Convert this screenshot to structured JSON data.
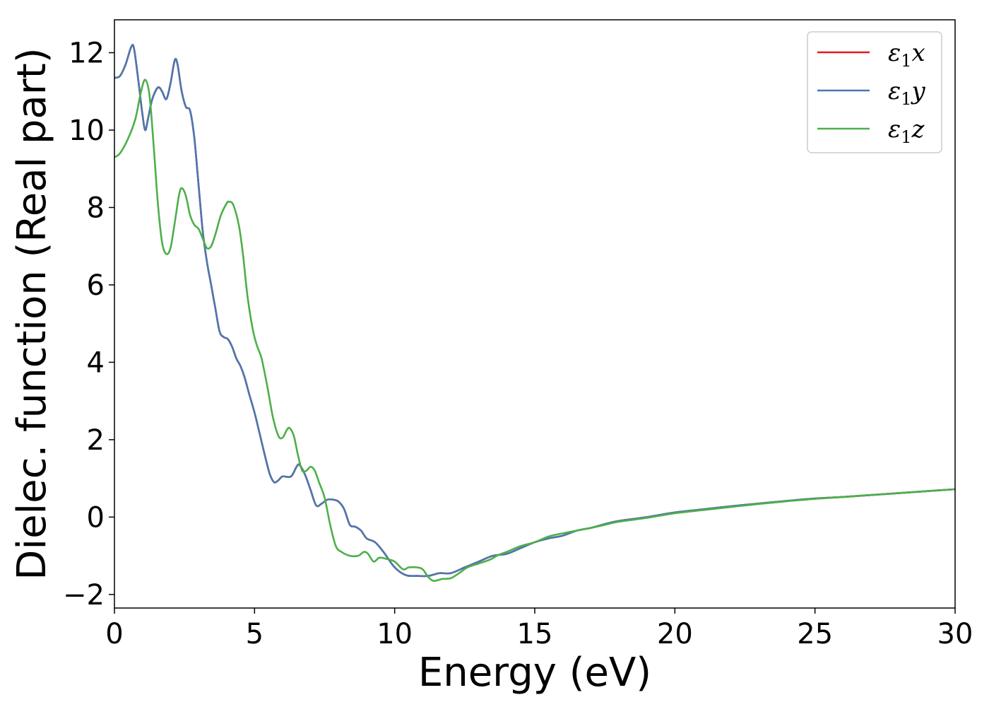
{
  "chart_data": {
    "type": "line",
    "title": "",
    "xlabel": "Energy (eV)",
    "ylabel": "Dielec. function (Real part)",
    "xlim": [
      0,
      30
    ],
    "ylim": [
      -2.35,
      12.85
    ],
    "xticks": [
      0,
      5,
      10,
      15,
      20,
      25,
      30
    ],
    "yticks": [
      -2,
      0,
      2,
      4,
      6,
      8,
      10,
      12
    ],
    "xtick_labels": [
      "0",
      "5",
      "10",
      "15",
      "20",
      "25",
      "30"
    ],
    "ytick_labels": [
      "−2",
      "0",
      "2",
      "4",
      "6",
      "8",
      "10",
      "12"
    ],
    "grid": false,
    "legend": "top-right",
    "series": [
      {
        "name_main": "ε",
        "name_sub": "1",
        "name_suffix": "x",
        "color": "#e41a1c",
        "points": [
          [
            0,
            11.35
          ],
          [
            0.2,
            11.4
          ],
          [
            0.4,
            11.7
          ],
          [
            0.6,
            12.15
          ],
          [
            0.7,
            12.1
          ],
          [
            0.85,
            11.3
          ],
          [
            1.0,
            10.4
          ],
          [
            1.1,
            10.0
          ],
          [
            1.2,
            10.3
          ],
          [
            1.35,
            10.8
          ],
          [
            1.55,
            11.1
          ],
          [
            1.7,
            11.0
          ],
          [
            1.85,
            10.8
          ],
          [
            2.0,
            11.2
          ],
          [
            2.15,
            11.8
          ],
          [
            2.25,
            11.7
          ],
          [
            2.4,
            11.0
          ],
          [
            2.55,
            10.6
          ],
          [
            2.7,
            10.5
          ],
          [
            2.85,
            9.8
          ],
          [
            3.0,
            8.6
          ],
          [
            3.15,
            7.4
          ],
          [
            3.3,
            6.6
          ],
          [
            3.45,
            6.0
          ],
          [
            3.6,
            5.4
          ],
          [
            3.75,
            4.8
          ],
          [
            3.9,
            4.65
          ],
          [
            4.05,
            4.6
          ],
          [
            4.2,
            4.4
          ],
          [
            4.35,
            4.1
          ],
          [
            4.5,
            3.9
          ],
          [
            4.65,
            3.6
          ],
          [
            4.8,
            3.2
          ],
          [
            5.0,
            2.7
          ],
          [
            5.2,
            2.1
          ],
          [
            5.4,
            1.5
          ],
          [
            5.55,
            1.1
          ],
          [
            5.7,
            0.9
          ],
          [
            5.85,
            0.95
          ],
          [
            6.0,
            1.05
          ],
          [
            6.3,
            1.05
          ],
          [
            6.5,
            1.3
          ],
          [
            6.6,
            1.35
          ],
          [
            6.8,
            1.1
          ],
          [
            7.0,
            0.7
          ],
          [
            7.2,
            0.3
          ],
          [
            7.4,
            0.35
          ],
          [
            7.6,
            0.45
          ],
          [
            7.8,
            0.45
          ],
          [
            8.0,
            0.4
          ],
          [
            8.2,
            0.2
          ],
          [
            8.4,
            -0.2
          ],
          [
            8.6,
            -0.25
          ],
          [
            8.8,
            -0.35
          ],
          [
            9.0,
            -0.55
          ],
          [
            9.3,
            -0.65
          ],
          [
            9.6,
            -0.9
          ],
          [
            10.0,
            -1.3
          ],
          [
            10.4,
            -1.5
          ],
          [
            10.8,
            -1.52
          ],
          [
            11.2,
            -1.52
          ],
          [
            11.6,
            -1.45
          ],
          [
            12.0,
            -1.45
          ],
          [
            12.5,
            -1.3
          ],
          [
            13.0,
            -1.15
          ],
          [
            13.5,
            -1.0
          ],
          [
            14.0,
            -0.95
          ],
          [
            14.5,
            -0.8
          ],
          [
            15.0,
            -0.65
          ],
          [
            15.5,
            -0.55
          ],
          [
            16.0,
            -0.48
          ],
          [
            16.5,
            -0.35
          ],
          [
            17.0,
            -0.28
          ],
          [
            17.5,
            -0.18
          ],
          [
            18.0,
            -0.1
          ],
          [
            19.0,
            0.0
          ],
          [
            20.0,
            0.12
          ],
          [
            21.0,
            0.2
          ],
          [
            22.0,
            0.28
          ],
          [
            23.0,
            0.35
          ],
          [
            24.0,
            0.42
          ],
          [
            25.0,
            0.48
          ],
          [
            26.0,
            0.52
          ],
          [
            27.0,
            0.57
          ],
          [
            28.0,
            0.62
          ],
          [
            29.0,
            0.67
          ],
          [
            30.0,
            0.72
          ]
        ]
      },
      {
        "name_main": "ε",
        "name_sub": "1",
        "name_suffix": "y",
        "color": "#4a78b0",
        "points": [
          [
            0,
            11.35
          ],
          [
            0.2,
            11.4
          ],
          [
            0.4,
            11.7
          ],
          [
            0.6,
            12.15
          ],
          [
            0.7,
            12.1
          ],
          [
            0.85,
            11.3
          ],
          [
            1.0,
            10.4
          ],
          [
            1.1,
            10.0
          ],
          [
            1.2,
            10.3
          ],
          [
            1.35,
            10.8
          ],
          [
            1.55,
            11.1
          ],
          [
            1.7,
            11.0
          ],
          [
            1.85,
            10.8
          ],
          [
            2.0,
            11.2
          ],
          [
            2.15,
            11.8
          ],
          [
            2.25,
            11.7
          ],
          [
            2.4,
            11.0
          ],
          [
            2.55,
            10.6
          ],
          [
            2.7,
            10.5
          ],
          [
            2.85,
            9.8
          ],
          [
            3.0,
            8.6
          ],
          [
            3.15,
            7.4
          ],
          [
            3.3,
            6.6
          ],
          [
            3.45,
            6.0
          ],
          [
            3.6,
            5.4
          ],
          [
            3.75,
            4.8
          ],
          [
            3.9,
            4.65
          ],
          [
            4.05,
            4.6
          ],
          [
            4.2,
            4.4
          ],
          [
            4.35,
            4.1
          ],
          [
            4.5,
            3.9
          ],
          [
            4.65,
            3.6
          ],
          [
            4.8,
            3.2
          ],
          [
            5.0,
            2.7
          ],
          [
            5.2,
            2.1
          ],
          [
            5.4,
            1.5
          ],
          [
            5.55,
            1.1
          ],
          [
            5.7,
            0.9
          ],
          [
            5.85,
            0.95
          ],
          [
            6.0,
            1.05
          ],
          [
            6.3,
            1.05
          ],
          [
            6.5,
            1.3
          ],
          [
            6.6,
            1.35
          ],
          [
            6.8,
            1.1
          ],
          [
            7.0,
            0.7
          ],
          [
            7.2,
            0.3
          ],
          [
            7.4,
            0.35
          ],
          [
            7.6,
            0.45
          ],
          [
            7.8,
            0.45
          ],
          [
            8.0,
            0.4
          ],
          [
            8.2,
            0.2
          ],
          [
            8.4,
            -0.2
          ],
          [
            8.6,
            -0.25
          ],
          [
            8.8,
            -0.35
          ],
          [
            9.0,
            -0.55
          ],
          [
            9.3,
            -0.65
          ],
          [
            9.6,
            -0.9
          ],
          [
            10.0,
            -1.3
          ],
          [
            10.4,
            -1.5
          ],
          [
            10.8,
            -1.52
          ],
          [
            11.2,
            -1.52
          ],
          [
            11.6,
            -1.45
          ],
          [
            12.0,
            -1.45
          ],
          [
            12.5,
            -1.3
          ],
          [
            13.0,
            -1.15
          ],
          [
            13.5,
            -1.0
          ],
          [
            14.0,
            -0.95
          ],
          [
            14.5,
            -0.8
          ],
          [
            15.0,
            -0.65
          ],
          [
            15.5,
            -0.55
          ],
          [
            16.0,
            -0.48
          ],
          [
            16.5,
            -0.35
          ],
          [
            17.0,
            -0.28
          ],
          [
            17.5,
            -0.18
          ],
          [
            18.0,
            -0.1
          ],
          [
            19.0,
            0.0
          ],
          [
            20.0,
            0.12
          ],
          [
            21.0,
            0.2
          ],
          [
            22.0,
            0.28
          ],
          [
            23.0,
            0.35
          ],
          [
            24.0,
            0.42
          ],
          [
            25.0,
            0.48
          ],
          [
            26.0,
            0.52
          ],
          [
            27.0,
            0.57
          ],
          [
            28.0,
            0.62
          ],
          [
            29.0,
            0.67
          ],
          [
            30.0,
            0.72
          ]
        ]
      },
      {
        "name_main": "ε",
        "name_sub": "1",
        "name_suffix": "z",
        "color": "#4daf4a",
        "points": [
          [
            0,
            9.3
          ],
          [
            0.2,
            9.4
          ],
          [
            0.5,
            9.8
          ],
          [
            0.75,
            10.3
          ],
          [
            0.95,
            11.0
          ],
          [
            1.1,
            11.3
          ],
          [
            1.25,
            10.9
          ],
          [
            1.4,
            9.6
          ],
          [
            1.55,
            8.1
          ],
          [
            1.7,
            7.1
          ],
          [
            1.85,
            6.8
          ],
          [
            2.0,
            6.95
          ],
          [
            2.15,
            7.6
          ],
          [
            2.3,
            8.3
          ],
          [
            2.4,
            8.5
          ],
          [
            2.55,
            8.3
          ],
          [
            2.7,
            7.8
          ],
          [
            2.85,
            7.55
          ],
          [
            3.0,
            7.45
          ],
          [
            3.15,
            7.2
          ],
          [
            3.3,
            6.95
          ],
          [
            3.45,
            7.0
          ],
          [
            3.6,
            7.3
          ],
          [
            3.8,
            7.8
          ],
          [
            4.0,
            8.1
          ],
          [
            4.1,
            8.15
          ],
          [
            4.25,
            8.05
          ],
          [
            4.45,
            7.5
          ],
          [
            4.6,
            6.7
          ],
          [
            4.75,
            5.7
          ],
          [
            4.95,
            4.8
          ],
          [
            5.1,
            4.4
          ],
          [
            5.25,
            4.1
          ],
          [
            5.45,
            3.4
          ],
          [
            5.65,
            2.6
          ],
          [
            5.85,
            2.1
          ],
          [
            6.0,
            2.05
          ],
          [
            6.15,
            2.25
          ],
          [
            6.25,
            2.3
          ],
          [
            6.4,
            2.1
          ],
          [
            6.55,
            1.6
          ],
          [
            6.7,
            1.2
          ],
          [
            6.85,
            1.2
          ],
          [
            7.0,
            1.3
          ],
          [
            7.15,
            1.2
          ],
          [
            7.3,
            0.9
          ],
          [
            7.5,
            0.5
          ],
          [
            7.7,
            -0.2
          ],
          [
            7.9,
            -0.75
          ],
          [
            8.1,
            -0.9
          ],
          [
            8.4,
            -1.0
          ],
          [
            8.7,
            -1.0
          ],
          [
            8.9,
            -0.9
          ],
          [
            9.05,
            -0.95
          ],
          [
            9.25,
            -1.15
          ],
          [
            9.45,
            -1.05
          ],
          [
            9.7,
            -1.08
          ],
          [
            10.0,
            -1.15
          ],
          [
            10.3,
            -1.35
          ],
          [
            10.5,
            -1.3
          ],
          [
            10.8,
            -1.3
          ],
          [
            11.0,
            -1.35
          ],
          [
            11.2,
            -1.55
          ],
          [
            11.4,
            -1.65
          ],
          [
            11.7,
            -1.6
          ],
          [
            12.0,
            -1.58
          ],
          [
            12.3,
            -1.45
          ],
          [
            12.6,
            -1.3
          ],
          [
            13.0,
            -1.2
          ],
          [
            13.4,
            -1.1
          ],
          [
            13.7,
            -0.98
          ],
          [
            14.0,
            -0.9
          ],
          [
            14.5,
            -0.75
          ],
          [
            15.0,
            -0.65
          ],
          [
            15.5,
            -0.5
          ],
          [
            16.0,
            -0.42
          ],
          [
            16.5,
            -0.35
          ],
          [
            17.0,
            -0.28
          ],
          [
            17.5,
            -0.2
          ],
          [
            18.0,
            -0.12
          ],
          [
            19.0,
            -0.02
          ],
          [
            20.0,
            0.1
          ],
          [
            21.0,
            0.18
          ],
          [
            22.0,
            0.26
          ],
          [
            23.0,
            0.34
          ],
          [
            24.0,
            0.41
          ],
          [
            25.0,
            0.47
          ],
          [
            26.0,
            0.52
          ],
          [
            27.0,
            0.57
          ],
          [
            28.0,
            0.62
          ],
          [
            29.0,
            0.67
          ],
          [
            30.0,
            0.72
          ]
        ]
      }
    ]
  }
}
